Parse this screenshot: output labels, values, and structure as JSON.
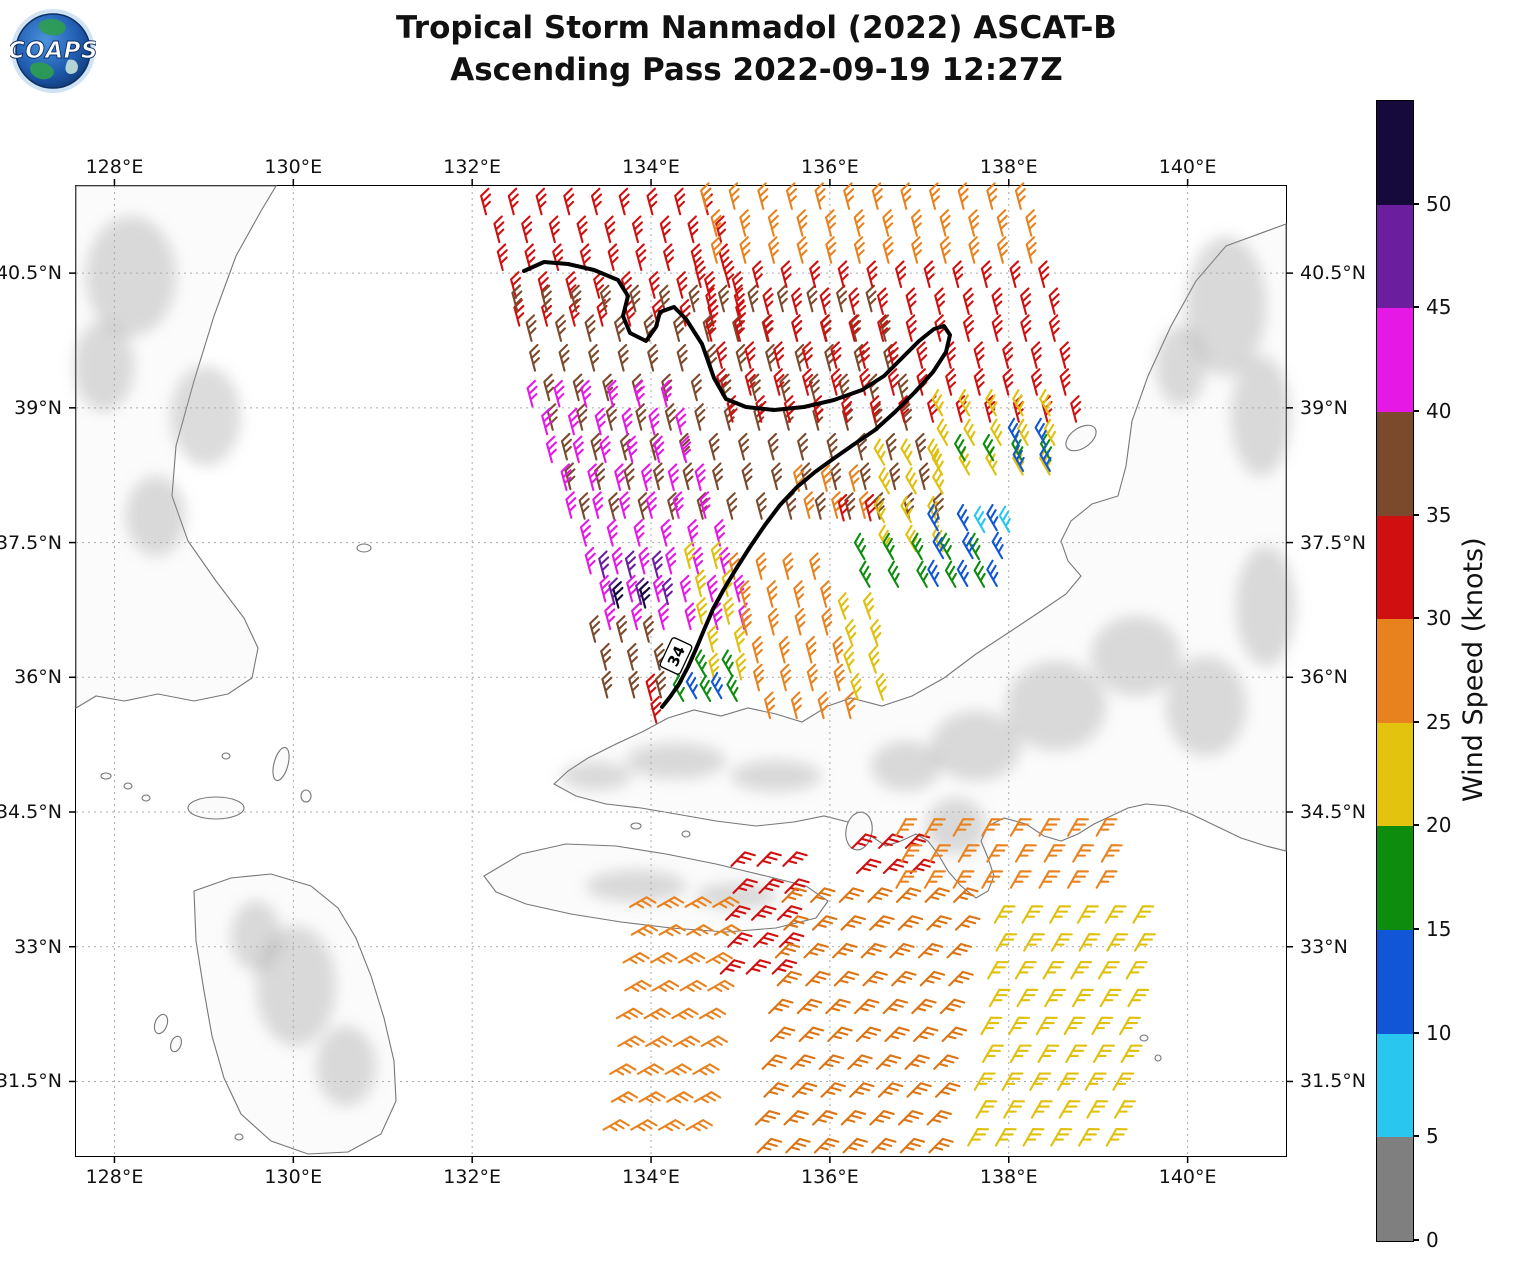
{
  "header": {
    "title_line1": "Tropical Storm Nanmadol (2022) ASCAT-B",
    "title_line2": "Ascending Pass 2022-09-19 12:27Z"
  },
  "logo": {
    "text": "COAPS"
  },
  "map": {
    "lon_range": [
      127.57,
      141.1
    ],
    "lat_range": [
      30.67,
      41.47
    ],
    "x_ticks": [
      {
        "lon": 128,
        "label": "128°E"
      },
      {
        "lon": 130,
        "label": "130°E"
      },
      {
        "lon": 132,
        "label": "132°E"
      },
      {
        "lon": 134,
        "label": "134°E"
      },
      {
        "lon": 136,
        "label": "136°E"
      },
      {
        "lon": 138,
        "label": "138°E"
      },
      {
        "lon": 140,
        "label": "140°E"
      }
    ],
    "y_ticks": [
      {
        "lat": 40.5,
        "label": "40.5°N"
      },
      {
        "lat": 39,
        "label": "39°N"
      },
      {
        "lat": 37.5,
        "label": "37.5°N"
      },
      {
        "lat": 36,
        "label": "36°N"
      },
      {
        "lat": 34.5,
        "label": "34.5°N"
      },
      {
        "lat": 33,
        "label": "33°N"
      },
      {
        "lat": 31.5,
        "label": "31.5°N"
      }
    ],
    "contour_label": "34"
  },
  "colorbar": {
    "title": "Wind Speed (knots)",
    "tick_labels": [
      "0",
      "5",
      "10",
      "15",
      "20",
      "25",
      "30",
      "35",
      "40",
      "45",
      "50"
    ],
    "segments_bottom_to_top": [
      {
        "range": "0-5",
        "color": "#7f7f7f"
      },
      {
        "range": "5-10",
        "color": "#29c6f0"
      },
      {
        "range": "10-15",
        "color": "#1256d8"
      },
      {
        "range": "15-20",
        "color": "#0e8c0e"
      },
      {
        "range": "20-25",
        "color": "#e3c30e"
      },
      {
        "range": "25-30",
        "color": "#e8821e"
      },
      {
        "range": "30-35",
        "color": "#d01010"
      },
      {
        "range": "35-40",
        "color": "#7b4a2d"
      },
      {
        "range": "40-45",
        "color": "#e618e6"
      },
      {
        "range": "45-50",
        "color": "#6b1f9e"
      },
      {
        "range": "50+",
        "color": "#160a3c"
      }
    ]
  },
  "chart_data": {
    "type": "scatter",
    "title": "Tropical Storm Nanmadol (2022) ASCAT-B",
    "subtitle": "Ascending Pass 2022-09-19 12:27Z",
    "content": "ASCAT-B scatterometer ocean-surface wind barbs colored by wind speed (knots), two satellite swaths over the Sea of Japan and Pacific south of Honshu",
    "contour": {
      "label": "34",
      "meaning": "34-knot wind speed contour"
    },
    "palette": {
      "red": "#d01010",
      "orange": "#e8821e",
      "orange2": "#dd7413",
      "brown": "#7b4a2d",
      "magenta": "#e618e6",
      "purple": "#6b1f9e",
      "navy": "#160a3c",
      "gold": "#e0c00c",
      "green": "#0e8c0e",
      "blue": "#1256d8",
      "cyan": "#29c6f0"
    },
    "barb_regions": [
      {
        "name": "red-top-left",
        "lon": 132.1,
        "lat": 41.36,
        "cols": 9,
        "rows": 5,
        "dlon": 0.31,
        "dlat": 0.31,
        "skew": 0.3,
        "color": "red",
        "speed_kt": "30-35",
        "rot": -15
      },
      {
        "name": "orange-top",
        "lon": 134.56,
        "lat": 41.42,
        "cols": 12,
        "rows": 3,
        "dlon": 0.32,
        "dlat": 0.3,
        "skew": 0.2,
        "color": "orange",
        "speed_kt": "25-30",
        "rot": -15
      },
      {
        "name": "brown-core",
        "lon": 132.45,
        "lat": 40.28,
        "cols": 13,
        "rows": 8,
        "dlon": 0.33,
        "dlat": 0.33,
        "skew": 0.3,
        "color": "brown",
        "speed_kt": "35-40",
        "rot": -15
      },
      {
        "name": "red-mid-band",
        "lon": 134.5,
        "lat": 40.55,
        "cols": 13,
        "rows": 6,
        "dlon": 0.32,
        "dlat": 0.3,
        "skew": 0.2,
        "color": "red",
        "speed_kt": "30-35",
        "rot": -15
      },
      {
        "name": "magenta-left",
        "lon": 132.62,
        "lat": 39.22,
        "cols": 6,
        "rows": 9,
        "dlon": 0.3,
        "dlat": 0.31,
        "skew": 0.35,
        "color": "magenta",
        "speed_kt": "40-45",
        "rot": -15
      },
      {
        "name": "purple-pocket",
        "lon": 133.42,
        "lat": 37.32,
        "cols": 3,
        "rows": 2,
        "dlon": 0.3,
        "dlat": 0.3,
        "skew": 0.2,
        "color": "purple",
        "speed_kt": "45-50",
        "rot": -15
      },
      {
        "name": "navy-pocket",
        "lon": 133.58,
        "lat": 36.98,
        "cols": 2,
        "rows": 1,
        "dlon": 0.3,
        "dlat": 0.3,
        "skew": 0.2,
        "color": "navy",
        "speed_kt": "50+",
        "rot": -15
      },
      {
        "name": "yellow-ne",
        "lon": 137.15,
        "lat": 39.1,
        "cols": 5,
        "rows": 3,
        "dlon": 0.3,
        "dlat": 0.33,
        "skew": 0.0,
        "color": "gold",
        "speed_kt": "20-25",
        "rot": -30
      },
      {
        "name": "yellow-e",
        "lon": 136.5,
        "lat": 38.55,
        "cols": 3,
        "rows": 4,
        "dlon": 0.3,
        "dlat": 0.32,
        "skew": 0.0,
        "color": "gold",
        "speed_kt": "20-25",
        "rot": -30
      },
      {
        "name": "green-ne",
        "lon": 137.4,
        "lat": 38.6,
        "cols": 4,
        "rows": 1,
        "dlon": 0.32,
        "dlat": 0.3,
        "skew": 0.0,
        "color": "green",
        "speed_kt": "15-20",
        "rot": -30
      },
      {
        "name": "green-e",
        "lon": 136.28,
        "lat": 37.5,
        "cols": 5,
        "rows": 2,
        "dlon": 0.32,
        "dlat": 0.31,
        "skew": 0.0,
        "color": "green",
        "speed_kt": "15-20",
        "rot": -30
      },
      {
        "name": "blue-ne",
        "lon": 138.0,
        "lat": 38.78,
        "cols": 2,
        "rows": 2,
        "dlon": 0.3,
        "dlat": 0.3,
        "skew": 0.0,
        "color": "blue",
        "speed_kt": "10-15",
        "rot": -30
      },
      {
        "name": "blue-e",
        "lon": 137.1,
        "lat": 37.82,
        "cols": 3,
        "rows": 3,
        "dlon": 0.33,
        "dlat": 0.31,
        "skew": 0.0,
        "color": "blue",
        "speed_kt": "10-15",
        "rot": -30
      },
      {
        "name": "cyan-e",
        "lon": 137.62,
        "lat": 37.8,
        "cols": 2,
        "rows": 1,
        "dlon": 0.28,
        "dlat": 0.3,
        "skew": 0.0,
        "color": "cyan",
        "speed_kt": "5-10",
        "rot": -30
      },
      {
        "name": "orange-mid-upper",
        "lon": 135.6,
        "lat": 38.28,
        "cols": 3,
        "rows": 2,
        "dlon": 0.31,
        "dlat": 0.3,
        "skew": 0.2,
        "color": "orange",
        "speed_kt": "25-30",
        "rot": -15
      },
      {
        "name": "red-pocket-mid",
        "lon": 136.1,
        "lat": 37.95,
        "cols": 2,
        "rows": 1,
        "dlon": 0.3,
        "dlat": 0.3,
        "skew": 0.0,
        "color": "red",
        "speed_kt": "30-35",
        "rot": -15
      },
      {
        "name": "orange-sw-band",
        "lon": 134.88,
        "lat": 37.3,
        "cols": 4,
        "rows": 6,
        "dlon": 0.3,
        "dlat": 0.31,
        "skew": 0.22,
        "color": "orange",
        "speed_kt": "25-30",
        "rot": -15
      },
      {
        "name": "yellow-sw-strip",
        "lon": 134.38,
        "lat": 37.42,
        "cols": 2,
        "rows": 5,
        "dlon": 0.3,
        "dlat": 0.31,
        "skew": 0.22,
        "color": "gold",
        "speed_kt": "20-25",
        "rot": -15
      },
      {
        "name": "yellow-s",
        "lon": 136.1,
        "lat": 36.85,
        "cols": 2,
        "rows": 4,
        "dlon": 0.28,
        "dlat": 0.3,
        "skew": 0.1,
        "color": "gold",
        "speed_kt": "20-25",
        "rot": -20
      },
      {
        "name": "brown-tip",
        "lon": 133.32,
        "lat": 36.6,
        "cols": 3,
        "rows": 3,
        "dlon": 0.3,
        "dlat": 0.31,
        "skew": 0.22,
        "color": "brown",
        "speed_kt": "35-40",
        "rot": -15
      },
      {
        "name": "green-tip",
        "lon": 134.2,
        "lat": 36.2,
        "cols": 3,
        "rows": 2,
        "dlon": 0.3,
        "dlat": 0.28,
        "skew": 0.0,
        "color": "green",
        "speed_kt": "15-20",
        "rot": -30
      },
      {
        "name": "blue-tip",
        "lon": 134.4,
        "lat": 35.95,
        "cols": 2,
        "rows": 1,
        "dlon": 0.28,
        "dlat": 0.3,
        "skew": 0.0,
        "color": "blue",
        "speed_kt": "10-15",
        "rot": -30
      },
      {
        "name": "red-tip",
        "lon": 133.95,
        "lat": 35.95,
        "cols": 1,
        "rows": 2,
        "dlon": 0.3,
        "dlat": 0.25,
        "skew": 0.0,
        "color": "red",
        "speed_kt": "30-35",
        "rot": -15
      },
      {
        "name": "orange-sw-lower",
        "lon": 133.95,
        "lat": 33.55,
        "cols": 4,
        "rows": 9,
        "dlon": 0.31,
        "dlat": 0.31,
        "skew": -0.12,
        "color": "orange",
        "speed_kt": "25-30",
        "rot": 60
      },
      {
        "name": "red-lower-left",
        "lon": 135.05,
        "lat": 34.05,
        "cols": 3,
        "rows": 5,
        "dlon": 0.29,
        "dlat": 0.3,
        "skew": -0.1,
        "color": "red",
        "speed_kt": "30-35",
        "rot": 45
      },
      {
        "name": "red-lower-mid",
        "lon": 136.4,
        "lat": 34.25,
        "cols": 3,
        "rows": 2,
        "dlon": 0.3,
        "dlat": 0.28,
        "skew": 0.0,
        "color": "red",
        "speed_kt": "30-35",
        "rot": 45
      },
      {
        "name": "orange-lower-core",
        "lon": 135.62,
        "lat": 33.65,
        "cols": 7,
        "rows": 10,
        "dlon": 0.32,
        "dlat": 0.31,
        "skew": -0.12,
        "color": "orange2",
        "speed_kt": "25-30",
        "rot": 45
      },
      {
        "name": "orange-lower-ne",
        "lon": 136.85,
        "lat": 34.42,
        "cols": 8,
        "rows": 3,
        "dlon": 0.32,
        "dlat": 0.29,
        "skew": 0.0,
        "color": "orange",
        "speed_kt": "25-30",
        "rot": 30
      },
      {
        "name": "yellow-lower-e",
        "lon": 137.95,
        "lat": 33.45,
        "cols": 6,
        "rows": 9,
        "dlon": 0.31,
        "dlat": 0.31,
        "skew": -0.12,
        "color": "gold",
        "speed_kt": "20-25",
        "rot": 30
      }
    ],
    "colorbar_scale_knots": [
      0,
      5,
      10,
      15,
      20,
      25,
      30,
      35,
      40,
      45,
      50
    ]
  }
}
